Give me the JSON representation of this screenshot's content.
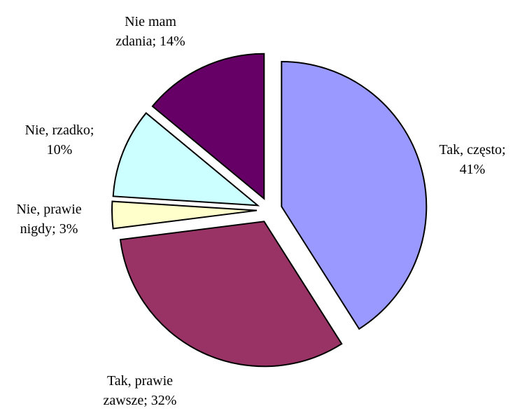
{
  "chart_data": {
    "type": "pie",
    "labels": [
      "Tak, często; 41%",
      "Tak, prawie zawsze; 32%",
      "Nie, prawie nigdy; 3%",
      "Nie, rzadko; 10%",
      "Nie mam zdania; 14%"
    ],
    "values": [
      41,
      32,
      3,
      10,
      14
    ],
    "colors": [
      "#9999ff",
      "#993366",
      "#ffffcc",
      "#ccffff",
      "#660066"
    ]
  }
}
